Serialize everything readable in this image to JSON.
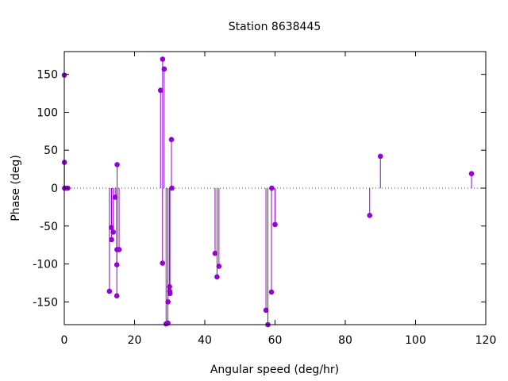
{
  "chart_data": {
    "type": "stem",
    "title": "Station 8638445",
    "xlabel": "Angular speed (deg/hr)",
    "ylabel": "Phase (deg)",
    "xlim": [
      0,
      120
    ],
    "ylim": [
      -180,
      180
    ],
    "xticks": [
      0,
      20,
      40,
      60,
      80,
      100,
      120
    ],
    "yticks": [
      -150,
      -100,
      -50,
      0,
      50,
      100,
      150
    ],
    "zero_line": "dotted",
    "grid": false,
    "series": [
      {
        "color": "#9400d3",
        "points": [
          {
            "x": 0.0,
            "y": 149
          },
          {
            "x": 0.04,
            "y": 34
          },
          {
            "x": 0.08,
            "y": 0
          },
          {
            "x": 0.55,
            "y": 0
          },
          {
            "x": 1.0,
            "y": 0
          },
          {
            "x": 12.85,
            "y": -136
          },
          {
            "x": 13.4,
            "y": -52
          },
          {
            "x": 13.47,
            "y": -68
          },
          {
            "x": 13.94,
            "y": -58
          },
          {
            "x": 14.5,
            "y": -12
          },
          {
            "x": 14.96,
            "y": -142
          },
          {
            "x": 14.96,
            "y": -101
          },
          {
            "x": 15.0,
            "y": -81
          },
          {
            "x": 15.04,
            "y": 31
          },
          {
            "x": 15.6,
            "y": -81
          },
          {
            "x": 27.4,
            "y": 129
          },
          {
            "x": 27.97,
            "y": -99
          },
          {
            "x": 28.0,
            "y": 170
          },
          {
            "x": 28.44,
            "y": 157
          },
          {
            "x": 28.98,
            "y": -179
          },
          {
            "x": 29.5,
            "y": -178
          },
          {
            "x": 29.53,
            "y": -150
          },
          {
            "x": 29.96,
            "y": -130
          },
          {
            "x": 30.0,
            "y": -136
          },
          {
            "x": 30.08,
            "y": -139
          },
          {
            "x": 30.5,
            "y": 64
          },
          {
            "x": 30.63,
            "y": 0
          },
          {
            "x": 42.93,
            "y": -86
          },
          {
            "x": 43.48,
            "y": -117
          },
          {
            "x": 44.03,
            "y": -103
          },
          {
            "x": 57.42,
            "y": -161
          },
          {
            "x": 57.97,
            "y": -180
          },
          {
            "x": 58.98,
            "y": -137
          },
          {
            "x": 59.07,
            "y": 0
          },
          {
            "x": 60.0,
            "y": -48
          },
          {
            "x": 86.95,
            "y": -36
          },
          {
            "x": 90.0,
            "y": 42
          },
          {
            "x": 115.94,
            "y": 19
          }
        ]
      }
    ]
  }
}
